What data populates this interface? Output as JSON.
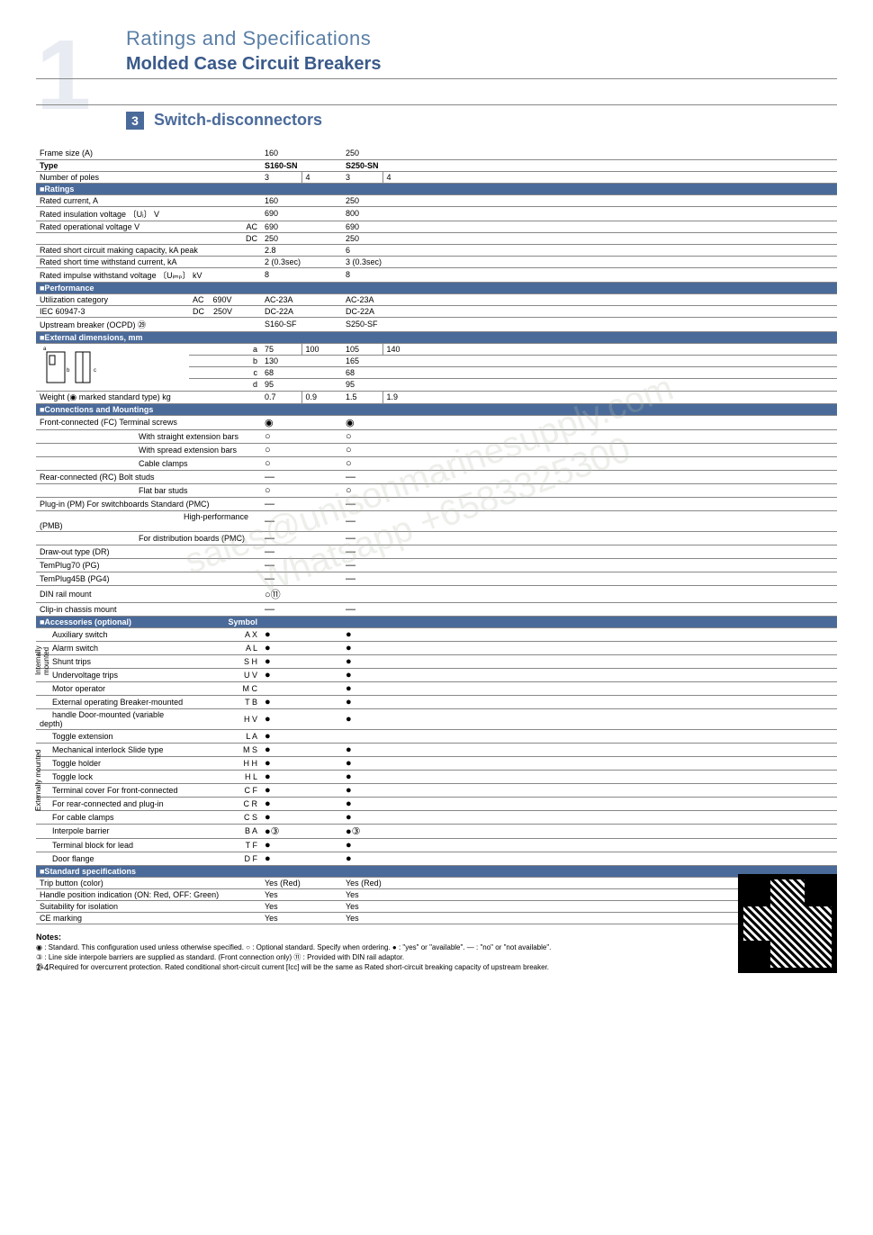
{
  "header": {
    "title_main": "Ratings and Specifications",
    "title_sub": "Molded Case Circuit Breakers",
    "section_num": "3",
    "section_title": "Switch-disconnectors",
    "bg_text": "1",
    "brand_hint": "UNISON",
    "brand_hint2": "MARINE"
  },
  "columns": {
    "frame_size": {
      "label": "Frame size (A)",
      "vals": [
        "160",
        "250"
      ]
    },
    "type": {
      "label": "Type",
      "vals": [
        "S160-SN",
        "S250-SN"
      ]
    },
    "poles": {
      "label": "Number of poles",
      "vals": [
        [
          "3",
          "4"
        ],
        [
          "3",
          "4"
        ]
      ]
    }
  },
  "ratings": {
    "header": "■Ratings",
    "rated_current": {
      "label": "Rated current, A",
      "vals": [
        "160",
        "250"
      ]
    },
    "rated_insulation": {
      "label": "Rated insulation voltage 〔Uᵢ〕  V",
      "vals": [
        "690",
        "800"
      ]
    },
    "rated_op_voltage": {
      "label": "Rated operational voltage  V",
      "ac_label": "AC",
      "dc_label": "DC",
      "ac": [
        "690",
        "690"
      ],
      "dc": [
        "250",
        "250"
      ]
    },
    "short_circuit_making": {
      "label": "Rated short circuit making capacity, kA peak",
      "vals": [
        "2.8",
        "6"
      ]
    },
    "short_time_withstand": {
      "label": "Rated short time withstand current, kA",
      "vals": [
        "2 (0.3sec)",
        "3 (0.3sec)"
      ]
    },
    "impulse_withstand": {
      "label": "Rated impulse withstand voltage 〔Uᵢₘₚ〕 kV",
      "vals": [
        "8",
        "8"
      ]
    }
  },
  "performance": {
    "header": "■Performance",
    "util_cat": {
      "label": "Utilization category",
      "ac_label": "AC",
      "ac_v": "690V",
      "dc_label": "DC",
      "dc_v": "250V",
      "ac": [
        "AC-23A",
        "AC-23A"
      ],
      "dc": [
        "DC-22A",
        "DC-22A"
      ]
    },
    "iec": {
      "label": "IEC 60947-3"
    },
    "upstream": {
      "label": "Upstream breaker (OCPD) ㉙",
      "vals": [
        "S160-SF",
        "S250-SF"
      ]
    }
  },
  "dimensions": {
    "header": "■External dimensions, mm",
    "a": {
      "label": "a",
      "vals": [
        [
          "75",
          "100"
        ],
        [
          "105",
          "140"
        ]
      ]
    },
    "b": {
      "label": "b",
      "vals": [
        "130",
        "165"
      ]
    },
    "c": {
      "label": "c",
      "vals": [
        "68",
        "68"
      ]
    },
    "d": {
      "label": "d",
      "vals": [
        "95",
        "95"
      ]
    },
    "weight": {
      "label": "Weight (◉ marked standard type) kg",
      "vals": [
        [
          "0.7",
          "0.9"
        ],
        [
          "1.5",
          "1.9"
        ]
      ]
    }
  },
  "connections": {
    "header": "■Connections and Mountings",
    "rows": [
      {
        "l1": "Front-connected (FC)",
        "l2": "Terminal screws",
        "v": [
          "◉",
          "◉"
        ]
      },
      {
        "l1": "",
        "l2": "With straight extension bars",
        "v": [
          "○",
          "○"
        ]
      },
      {
        "l1": "",
        "l2": "With spread extension bars",
        "v": [
          "○",
          "○"
        ]
      },
      {
        "l1": "",
        "l2": "Cable clamps",
        "v": [
          "○",
          "○"
        ]
      },
      {
        "l1": "Rear-connected (RC)",
        "l2": "Bolt studs",
        "v": [
          "—",
          "—"
        ]
      },
      {
        "l1": "",
        "l2": "Flat bar studs",
        "v": [
          "○",
          "○"
        ]
      },
      {
        "l1": "Plug-in (PM)",
        "l2": "For switchboards Standard (PMC)",
        "v": [
          "—",
          "—"
        ]
      },
      {
        "l1": "",
        "l2": "High-performance (PMB)",
        "indent": 3,
        "v": [
          "—",
          "—"
        ]
      },
      {
        "l1": "",
        "l2": "For distribution boards (PMC)",
        "v": [
          "—",
          "—"
        ]
      },
      {
        "l1": "Draw-out type (DR)",
        "l2": "",
        "v": [
          "—",
          "—"
        ]
      },
      {
        "l1": "TemPlug70 (PG)",
        "l2": "",
        "v": [
          "—",
          "—"
        ]
      },
      {
        "l1": "TemPlug45B (PG4)",
        "l2": "",
        "v": [
          "—",
          "—"
        ]
      },
      {
        "l1": "DIN rail mount",
        "l2": "",
        "v": [
          "○⑪",
          ""
        ]
      },
      {
        "l1": "Clip-in chassis mount",
        "l2": "",
        "v": [
          "—",
          "—"
        ]
      }
    ]
  },
  "accessories": {
    "header": "■Accessories (optional)",
    "symbol_label": "Symbol",
    "internal_label": "Internally mounted",
    "external_label": "Externally mounted",
    "rows": [
      {
        "grp": "internal",
        "label": "Auxiliary switch",
        "sym": "A X",
        "v": [
          "●",
          "●"
        ]
      },
      {
        "grp": "internal",
        "label": "Alarm switch",
        "sym": "A L",
        "v": [
          "●",
          "●"
        ]
      },
      {
        "grp": "internal",
        "label": "Shunt trips",
        "sym": "S H",
        "v": [
          "●",
          "●"
        ]
      },
      {
        "grp": "internal",
        "label": "Undervoltage trips",
        "sym": "U V",
        "v": [
          "●",
          "●"
        ]
      },
      {
        "grp": "",
        "label": "Motor operator",
        "sym": "M C",
        "v": [
          "",
          "●"
        ]
      },
      {
        "grp": "",
        "label": "External operating   Breaker-mounted",
        "sym": "T B",
        "v": [
          "●",
          "●"
        ]
      },
      {
        "grp": "",
        "label": "handle                   Door-mounted (variable depth)",
        "sym": "H V",
        "v": [
          "●",
          "●"
        ]
      },
      {
        "grp": "external",
        "label": "Toggle extension",
        "sym": "L A",
        "v": [
          "●",
          ""
        ]
      },
      {
        "grp": "external",
        "label": "Mechanical interlock Slide type",
        "sym": "M S",
        "v": [
          "●",
          "●"
        ]
      },
      {
        "grp": "external",
        "label": "Toggle holder",
        "sym": "H H",
        "v": [
          "●",
          "●"
        ]
      },
      {
        "grp": "external",
        "label": "Toggle lock",
        "sym": "H L",
        "v": [
          "●",
          "●"
        ]
      },
      {
        "grp": "external",
        "label": "Terminal cover   For front-connected",
        "sym": "C F",
        "v": [
          "●",
          "●"
        ]
      },
      {
        "grp": "external",
        "label": "                        For rear-connected and plug-in",
        "sym": "C R",
        "v": [
          "●",
          "●"
        ]
      },
      {
        "grp": "external",
        "label": "                        For cable clamps",
        "sym": "C S",
        "v": [
          "●",
          "●"
        ]
      },
      {
        "grp": "",
        "label": "Interpole barrier",
        "sym": "B A",
        "v": [
          "●③",
          "●③"
        ]
      },
      {
        "grp": "",
        "label": "Terminal block for lead",
        "sym": "T F",
        "v": [
          "●",
          "●"
        ]
      },
      {
        "grp": "",
        "label": "Door flange",
        "sym": "D F",
        "v": [
          "●",
          "●"
        ]
      }
    ]
  },
  "standard": {
    "header": "■Standard specifications",
    "rows": [
      {
        "label": "Trip button (color)",
        "v": [
          "Yes (Red)",
          "Yes (Red)"
        ]
      },
      {
        "label": "Handle position indication (ON: Red, OFF: Green)",
        "v": [
          "Yes",
          "Yes"
        ]
      },
      {
        "label": "Suitability for isolation",
        "v": [
          "Yes",
          "Yes"
        ]
      },
      {
        "label": "CE marking",
        "v": [
          "Yes",
          "Yes"
        ]
      }
    ]
  },
  "notes": {
    "title": "Notes:",
    "lines": [
      "◉ : Standard. This configuration used unless otherwise specified.  ○ : Optional standard. Specify when ordering.  ● : \"yes\" or \"available\".  — : \"no\" or \"not available\".",
      "③ : Line side interpole barriers are supplied as standard. (Front connection only)  ⑪ : Provided with DIN rail adaptor.",
      "㉙ : Required for overcurrent protection.  Rated conditional short-circuit current [Iᴄᴄ] will be the same as Rated short-circuit breaking capacity of upstream breaker."
    ]
  },
  "page_num": "1-4",
  "watermark": "sales@unisonmarinesupply.com\nWhatsapp +6583325300",
  "colors": {
    "header_blue": "#4a6a9a",
    "faint_blue": "#5a7fa6",
    "rule": "#888888"
  }
}
